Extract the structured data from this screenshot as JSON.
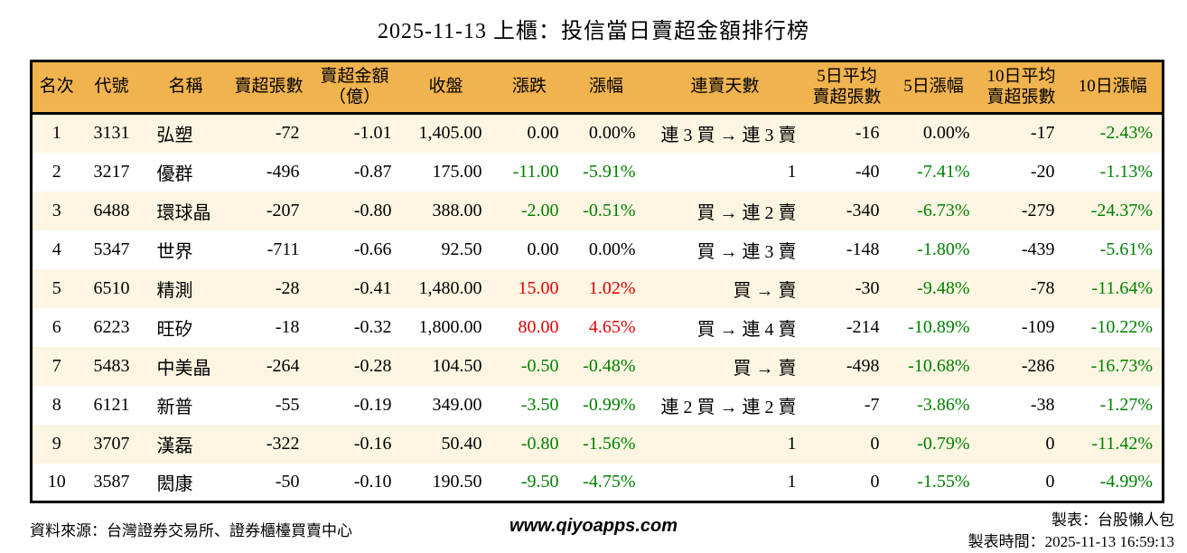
{
  "title": "2025-11-13 上櫃：投信當日賣超金額排行榜",
  "colors": {
    "header_bg": "#F1B34E",
    "row_odd_bg": "#FCF5E1",
    "down_green": "#008000",
    "up_red": "#E00000",
    "border": "#000000"
  },
  "chart_data": {
    "type": "table",
    "title": "2025-11-13 上櫃：投信當日賣超金額排行榜",
    "columns": [
      "名次",
      "代號",
      "名稱",
      "賣超張數",
      "賣超金額\n（億）",
      "收盤",
      "漲跌",
      "漲幅",
      "連賣天數",
      "5日平均\n賣超張數",
      "5日漲幅",
      "10日平均\n賣超張數",
      "10日漲幅"
    ],
    "rows": [
      {
        "cells": [
          "1",
          "3131",
          "弘塑",
          "-72",
          "-1.01",
          "1,405.00",
          "0.00",
          "0.00%",
          "連 3 買 → 連 3 賣",
          "-16",
          "0.00%",
          "-17",
          "-2.43%"
        ],
        "colors": [
          "",
          "",
          "",
          "",
          "",
          "",
          "",
          "",
          "",
          "",
          "",
          "",
          "green"
        ]
      },
      {
        "cells": [
          "2",
          "3217",
          "優群",
          "-496",
          "-0.87",
          "175.00",
          "-11.00",
          "-5.91%",
          "1",
          "-40",
          "-7.41%",
          "-20",
          "-1.13%"
        ],
        "colors": [
          "",
          "",
          "",
          "",
          "",
          "",
          "green",
          "green",
          "",
          "",
          "green",
          "",
          "green"
        ]
      },
      {
        "cells": [
          "3",
          "6488",
          "環球晶",
          "-207",
          "-0.80",
          "388.00",
          "-2.00",
          "-0.51%",
          "買 → 連 2 賣",
          "-340",
          "-6.73%",
          "-279",
          "-24.37%"
        ],
        "colors": [
          "",
          "",
          "",
          "",
          "",
          "",
          "green",
          "green",
          "",
          "",
          "green",
          "",
          "green"
        ]
      },
      {
        "cells": [
          "4",
          "5347",
          "世界",
          "-711",
          "-0.66",
          "92.50",
          "0.00",
          "0.00%",
          "買 → 連 3 賣",
          "-148",
          "-1.80%",
          "-439",
          "-5.61%"
        ],
        "colors": [
          "",
          "",
          "",
          "",
          "",
          "",
          "",
          "",
          "",
          "",
          "green",
          "",
          "green"
        ]
      },
      {
        "cells": [
          "5",
          "6510",
          "精測",
          "-28",
          "-0.41",
          "1,480.00",
          "15.00",
          "1.02%",
          "買 → 賣",
          "-30",
          "-9.48%",
          "-78",
          "-11.64%"
        ],
        "colors": [
          "",
          "",
          "",
          "",
          "",
          "",
          "red",
          "red",
          "",
          "",
          "green",
          "",
          "green"
        ]
      },
      {
        "cells": [
          "6",
          "6223",
          "旺矽",
          "-18",
          "-0.32",
          "1,800.00",
          "80.00",
          "4.65%",
          "買 → 連 4 賣",
          "-214",
          "-10.89%",
          "-109",
          "-10.22%"
        ],
        "colors": [
          "",
          "",
          "",
          "",
          "",
          "",
          "red",
          "red",
          "",
          "",
          "green",
          "",
          "green"
        ]
      },
      {
        "cells": [
          "7",
          "5483",
          "中美晶",
          "-264",
          "-0.28",
          "104.50",
          "-0.50",
          "-0.48%",
          "買 → 賣",
          "-498",
          "-10.68%",
          "-286",
          "-16.73%"
        ],
        "colors": [
          "",
          "",
          "",
          "",
          "",
          "",
          "green",
          "green",
          "",
          "",
          "green",
          "",
          "green"
        ]
      },
      {
        "cells": [
          "8",
          "6121",
          "新普",
          "-55",
          "-0.19",
          "349.00",
          "-3.50",
          "-0.99%",
          "連 2 買 → 連 2 賣",
          "-7",
          "-3.86%",
          "-38",
          "-1.27%"
        ],
        "colors": [
          "",
          "",
          "",
          "",
          "",
          "",
          "green",
          "green",
          "",
          "",
          "green",
          "",
          "green"
        ]
      },
      {
        "cells": [
          "9",
          "3707",
          "漢磊",
          "-322",
          "-0.16",
          "50.40",
          "-0.80",
          "-1.56%",
          "1",
          "0",
          "-0.79%",
          "0",
          "-11.42%"
        ],
        "colors": [
          "",
          "",
          "",
          "",
          "",
          "",
          "green",
          "green",
          "",
          "",
          "green",
          "",
          "green"
        ]
      },
      {
        "cells": [
          "10",
          "3587",
          "閎康",
          "-50",
          "-0.10",
          "190.50",
          "-9.50",
          "-4.75%",
          "1",
          "0",
          "-1.55%",
          "0",
          "-4.99%"
        ],
        "colors": [
          "",
          "",
          "",
          "",
          "",
          "",
          "green",
          "green",
          "",
          "",
          "green",
          "",
          "green"
        ]
      }
    ]
  },
  "footer": {
    "source": "資料來源：台灣證券交易所、證券櫃檯買賣中心",
    "website": "www.qiyoapps.com",
    "maker": "製表：台股懶人包",
    "made_time": "製表時間：2025-11-13 16:59:13"
  }
}
